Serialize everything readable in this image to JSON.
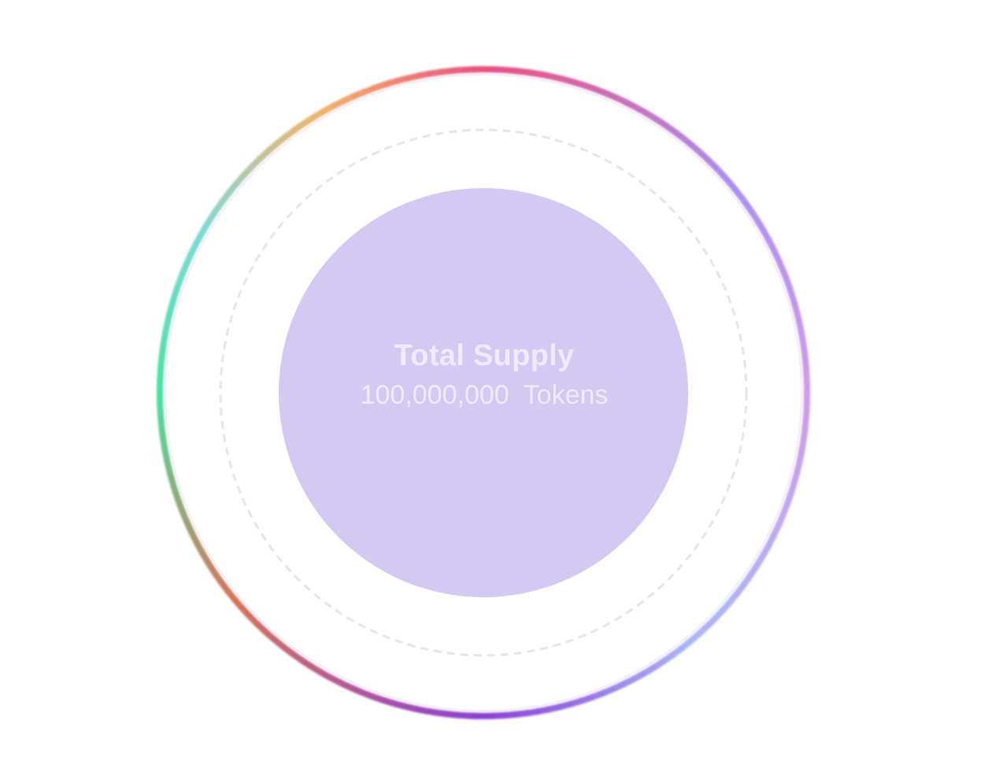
{
  "token_supply": {
    "title": "Total Supply",
    "amount": "100,000,000",
    "unit": "Tokens"
  },
  "colors": {
    "background": "#ffffff",
    "inner_circle": "#d4c9f2",
    "label_text": "#efeafd",
    "dashed_ring": "#e6e6e6",
    "gradient_ring": [
      "#e8507f",
      "#a98ff0",
      "#d19ae8",
      "#a9b8f5",
      "#8a3fd4",
      "#d8725a",
      "#46e29f",
      "#7fd9d6",
      "#f2b36a"
    ]
  }
}
